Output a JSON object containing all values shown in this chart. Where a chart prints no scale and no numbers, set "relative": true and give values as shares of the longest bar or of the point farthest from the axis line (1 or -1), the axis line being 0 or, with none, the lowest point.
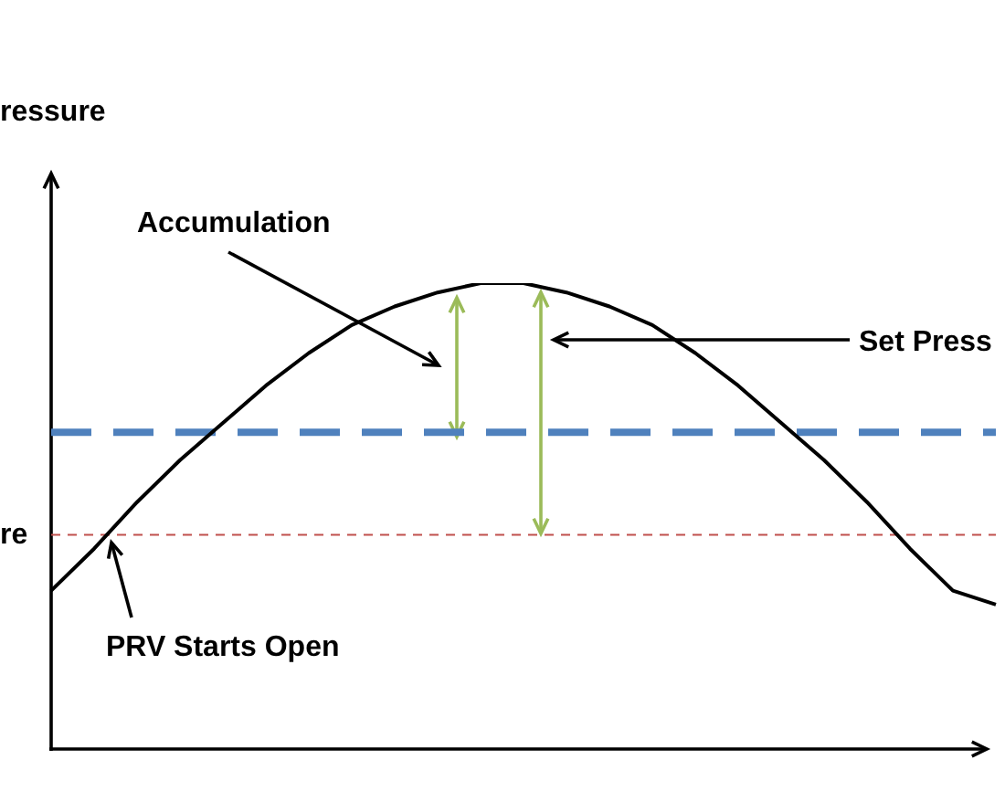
{
  "chart_data": {
    "type": "line",
    "relative": true,
    "categories": [
      null,
      null,
      null,
      null,
      null,
      null,
      null,
      null,
      null,
      null,
      null,
      null,
      null,
      null,
      null,
      null,
      null,
      null,
      null,
      null,
      null,
      null,
      null
    ],
    "values": [
      0.34,
      0.43,
      0.53,
      0.62,
      0.7,
      0.78,
      0.85,
      0.91,
      0.95,
      0.98,
      1,
      1,
      0.98,
      0.95,
      0.91,
      0.85,
      0.78,
      0.7,
      0.62,
      0.53,
      0.43,
      0.34,
      0.31
    ],
    "color": "#000000",
    "marker": "none",
    "line_style": "solid",
    "ref_lines": [
      {
        "axis": "y",
        "value": 0.68,
        "label": null,
        "color": "#4f81bd",
        "line_style": "dashed"
      },
      {
        "axis": "y",
        "value": 0.46,
        "label": "re",
        "color": "#c0504d",
        "line_style": "dotted"
      }
    ],
    "annotations": [
      "Accumulation",
      "Set Press",
      "PRV Starts Open",
      "ressure"
    ]
  }
}
